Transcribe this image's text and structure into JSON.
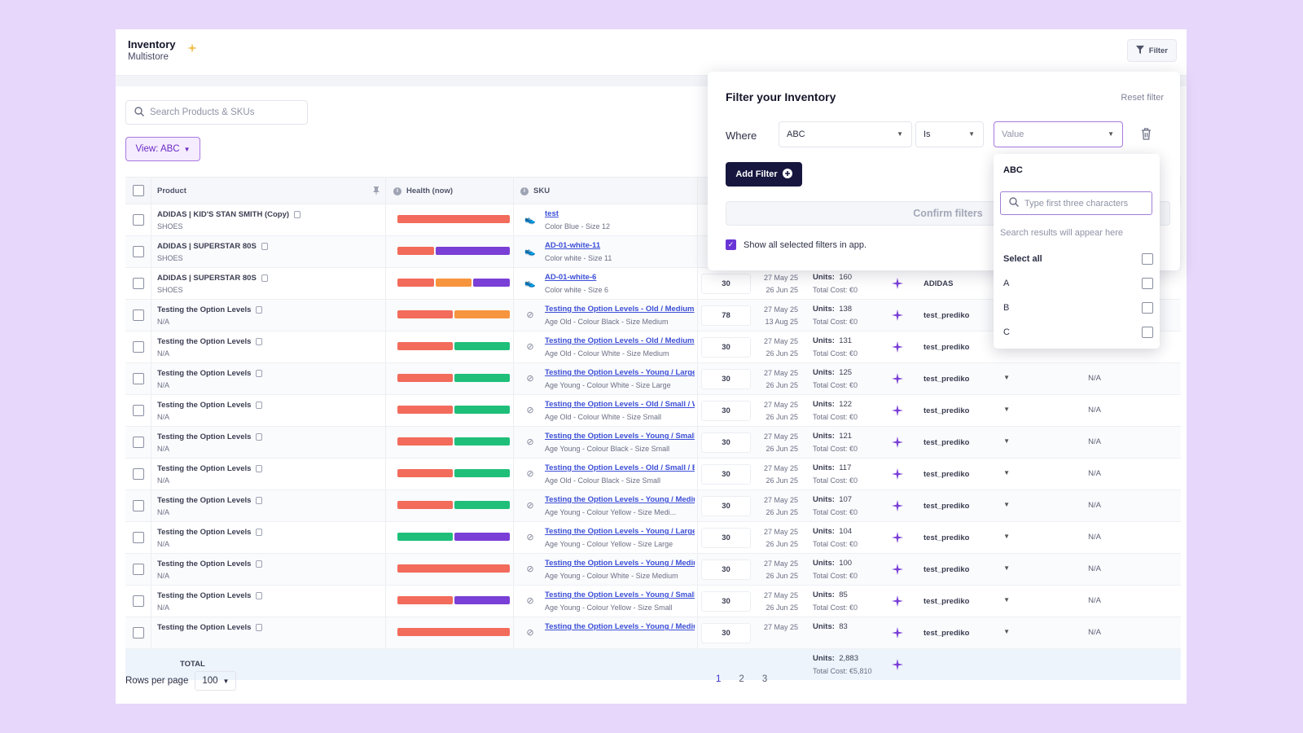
{
  "header": {
    "title": "Inventory",
    "subtitle": "Multistore",
    "filter_label": "Filter"
  },
  "search": {
    "placeholder": "Search Products & SKUs"
  },
  "view": {
    "label": "View: ABC"
  },
  "table": {
    "columns": {
      "product": "Product",
      "health": "Health (now)",
      "sku": "SKU"
    },
    "rows": [
      {
        "name": "ADIDAS | KID'S STAN SMITH (Copy)",
        "cat": "SHOES",
        "health": [
          {
            "c": "#f26b5b",
            "w": 100
          }
        ],
        "thumb": "shoe",
        "sku": "test",
        "skud": "Color Blue - Size 12",
        "qty": "",
        "d1": "",
        "d2": "",
        "units": "",
        "cost": "",
        "supplier": "",
        "na": ""
      },
      {
        "name": "ADIDAS | SUPERSTAR 80S",
        "cat": "SHOES",
        "health": [
          {
            "c": "#f26b5b",
            "w": 33
          },
          {
            "c": "#7a3fd6",
            "w": 67
          }
        ],
        "thumb": "shoe",
        "sku": "AD-01-white-11",
        "skud": "Color white - Size 11",
        "qty": "",
        "d1": "",
        "d2": "",
        "units": "",
        "cost": "",
        "supplier": "",
        "na": ""
      },
      {
        "name": "ADIDAS | SUPERSTAR 80S",
        "cat": "SHOES",
        "health": [
          {
            "c": "#f26b5b",
            "w": 33
          },
          {
            "c": "#f7943e",
            "w": 33
          },
          {
            "c": "#7a3fd6",
            "w": 33
          }
        ],
        "thumb": "shoe",
        "sku": "AD-01-white-6",
        "skud": "Color white - Size 6",
        "qty": "30",
        "d1": "27 May 25",
        "d2": "26 Jun 25",
        "units": "160",
        "cost": "Total Cost: €0",
        "supplier": "ADIDAS",
        "na": ""
      },
      {
        "name": "Testing the Option Levels",
        "cat": "N/A",
        "health": [
          {
            "c": "#f26b5b",
            "w": 50
          },
          {
            "c": "#f7943e",
            "w": 50
          }
        ],
        "thumb": "img",
        "sku": "Testing the Option Levels - Old / Medium",
        "skud": "Age Old - Colour Black - Size Medium",
        "qty": "78",
        "d1": "27 May 25",
        "d2": "13 Aug 25",
        "units": "138",
        "cost": "Total Cost: €0",
        "supplier": "test_prediko",
        "na": ""
      },
      {
        "name": "Testing the Option Levels",
        "cat": "N/A",
        "health": [
          {
            "c": "#f26b5b",
            "w": 50
          },
          {
            "c": "#1fbf7a",
            "w": 50
          }
        ],
        "thumb": "img",
        "sku": "Testing the Option Levels - Old / Medium",
        "skud": "Age Old - Colour White - Size Medium",
        "qty": "30",
        "d1": "27 May 25",
        "d2": "26 Jun 25",
        "units": "131",
        "cost": "Total Cost: €0",
        "supplier": "test_prediko",
        "na": ""
      },
      {
        "name": "Testing the Option Levels",
        "cat": "N/A",
        "health": [
          {
            "c": "#f26b5b",
            "w": 50
          },
          {
            "c": "#1fbf7a",
            "w": 50
          }
        ],
        "thumb": "img",
        "sku": "Testing the Option Levels - Young / Large",
        "skud": "Age Young - Colour White - Size Large",
        "qty": "30",
        "d1": "27 May 25",
        "d2": "26 Jun 25",
        "units": "125",
        "cost": "Total Cost: €0",
        "supplier": "test_prediko",
        "na": "N/A"
      },
      {
        "name": "Testing the Option Levels",
        "cat": "N/A",
        "health": [
          {
            "c": "#f26b5b",
            "w": 50
          },
          {
            "c": "#1fbf7a",
            "w": 50
          }
        ],
        "thumb": "img",
        "sku": "Testing the Option Levels - Old / Small / White",
        "skud": "Age Old - Colour White - Size Small",
        "qty": "30",
        "d1": "27 May 25",
        "d2": "26 Jun 25",
        "units": "122",
        "cost": "Total Cost: €0",
        "supplier": "test_prediko",
        "na": "N/A"
      },
      {
        "name": "Testing the Option Levels",
        "cat": "N/A",
        "health": [
          {
            "c": "#f26b5b",
            "w": 50
          },
          {
            "c": "#1fbf7a",
            "w": 50
          }
        ],
        "thumb": "img",
        "sku": "Testing the Option Levels - Young / Small",
        "skud": "Age Young - Colour Black - Size Small",
        "qty": "30",
        "d1": "27 May 25",
        "d2": "26 Jun 25",
        "units": "121",
        "cost": "Total Cost: €0",
        "supplier": "test_prediko",
        "na": "N/A"
      },
      {
        "name": "Testing the Option Levels",
        "cat": "N/A",
        "health": [
          {
            "c": "#f26b5b",
            "w": 50
          },
          {
            "c": "#1fbf7a",
            "w": 50
          }
        ],
        "thumb": "img",
        "sku": "Testing the Option Levels - Old / Small / Black",
        "skud": "Age Old - Colour Black - Size Small",
        "qty": "30",
        "d1": "27 May 25",
        "d2": "26 Jun 25",
        "units": "117",
        "cost": "Total Cost: €0",
        "supplier": "test_prediko",
        "na": "N/A"
      },
      {
        "name": "Testing the Option Levels",
        "cat": "N/A",
        "health": [
          {
            "c": "#f26b5b",
            "w": 50
          },
          {
            "c": "#1fbf7a",
            "w": 50
          }
        ],
        "thumb": "img",
        "sku": "Testing the Option Levels - Young / Medium",
        "skud": "Age Young - Colour Yellow - Size Medi...",
        "qty": "30",
        "d1": "27 May 25",
        "d2": "26 Jun 25",
        "units": "107",
        "cost": "Total Cost: €0",
        "supplier": "test_prediko",
        "na": "N/A"
      },
      {
        "name": "Testing the Option Levels",
        "cat": "N/A",
        "health": [
          {
            "c": "#1fbf7a",
            "w": 50
          },
          {
            "c": "#7a3fd6",
            "w": 50
          }
        ],
        "thumb": "img",
        "sku": "Testing the Option Levels - Young / Large",
        "skud": "Age Young - Colour Yellow - Size Large",
        "qty": "30",
        "d1": "27 May 25",
        "d2": "26 Jun 25",
        "units": "104",
        "cost": "Total Cost: €0",
        "supplier": "test_prediko",
        "na": "N/A"
      },
      {
        "name": "Testing the Option Levels",
        "cat": "N/A",
        "health": [
          {
            "c": "#f26b5b",
            "w": 100
          }
        ],
        "thumb": "img",
        "sku": "Testing the Option Levels - Young / Medium",
        "skud": "Age Young - Colour White - Size Medium",
        "qty": "30",
        "d1": "27 May 25",
        "d2": "26 Jun 25",
        "units": "100",
        "cost": "Total Cost: €0",
        "supplier": "test_prediko",
        "na": "N/A"
      },
      {
        "name": "Testing the Option Levels",
        "cat": "N/A",
        "health": [
          {
            "c": "#f26b5b",
            "w": 50
          },
          {
            "c": "#7a3fd6",
            "w": 50
          }
        ],
        "thumb": "img",
        "sku": "Testing the Option Levels - Young / Small",
        "skud": "Age Young - Colour Yellow - Size Small",
        "qty": "30",
        "d1": "27 May 25",
        "d2": "26 Jun 25",
        "units": "85",
        "cost": "Total Cost: €0",
        "supplier": "test_prediko",
        "na": "N/A"
      },
      {
        "name": "Testing the Option Levels",
        "cat": "",
        "health": [
          {
            "c": "#f26b5b",
            "w": 100
          }
        ],
        "thumb": "img",
        "sku": "Testing the Option Levels - Young / Medium",
        "skud": "",
        "qty": "30",
        "d1": "27 May 25",
        "d2": "",
        "units": "83",
        "cost": "",
        "supplier": "test_prediko",
        "na": "N/A"
      }
    ],
    "units_label": "Units:",
    "total": {
      "label": "TOTAL",
      "units": "2,883",
      "cost": "Total Cost: €5,810"
    }
  },
  "footer": {
    "rows_label": "Rows per page",
    "rows_value": "100",
    "pages": [
      "1",
      "2",
      "3"
    ],
    "active_page": "1"
  },
  "filter_panel": {
    "title": "Filter your Inventory",
    "reset": "Reset filter",
    "where": "Where",
    "field": "ABC",
    "operator": "Is",
    "value_placeholder": "Value",
    "add_filter": "Add Filter",
    "confirm": "Confirm filters",
    "show_all": "Show all selected filters in app."
  },
  "dropdown": {
    "title": "ABC",
    "search_placeholder": "Type first three characters",
    "hint": "Search results will appear here",
    "options": [
      "Select all",
      "A",
      "B",
      "C"
    ]
  },
  "colors": {
    "accent": "#6a35d6",
    "red": "#f26b5b",
    "orange": "#f7943e",
    "green": "#1fbf7a",
    "purple": "#7a3fd6",
    "navy": "#16163f"
  }
}
